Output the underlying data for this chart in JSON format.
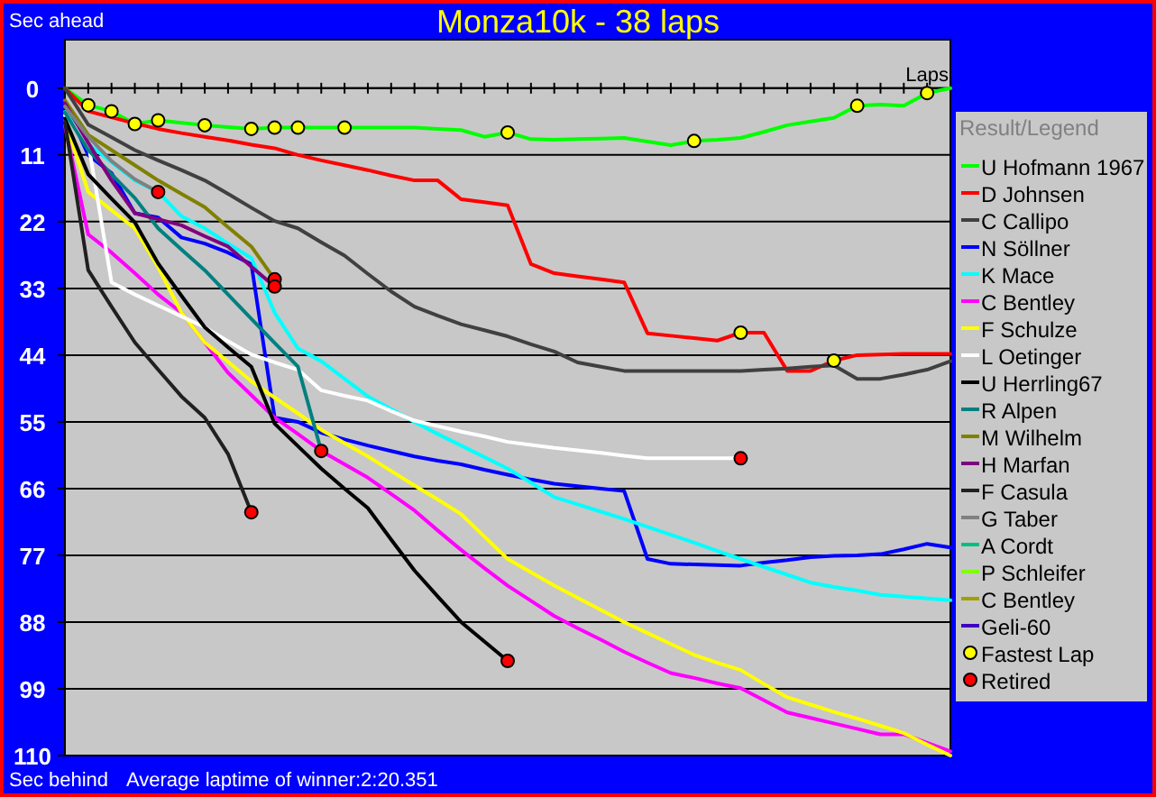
{
  "chart_data": {
    "type": "line",
    "title": "Monza10k - 38 laps",
    "ylabel": "Sec ahead",
    "xlabel": "Laps",
    "legend_title": "Result/Legend",
    "legend": "right",
    "grid": "y",
    "tick_labels": "y",
    "annotations": [
      "Sec behind",
      "Average laptime of winner:2:20.351"
    ],
    "categories": [
      null,
      null,
      null,
      null,
      null,
      null,
      null,
      null,
      null,
      null,
      null,
      null,
      null,
      null,
      null,
      null,
      null,
      null,
      null,
      null,
      null,
      null,
      null,
      null,
      null,
      null,
      null,
      null,
      null,
      null,
      null,
      null,
      null,
      null,
      null,
      null,
      null,
      null,
      null
    ],
    "ylim": [
      110,
      -8
    ],
    "yticks": [
      0,
      11,
      22,
      33,
      44,
      55,
      66,
      77,
      88,
      99,
      110
    ],
    "series": [
      {
        "name": "U Hofmann 1967",
        "color": "#00ff00",
        "values": [
          0,
          2.8,
          3.8,
          5.9,
          5.3,
          5.7,
          6.1,
          6.4,
          6.7,
          6.5,
          6.5,
          6.5,
          6.5,
          6.5,
          6.5,
          6.5,
          6.7,
          6.9,
          8.0,
          7.3,
          8.4,
          8.5,
          8.4,
          8.3,
          8.2,
          8.8,
          9.4,
          8.7,
          8.5,
          8.2,
          7.2,
          6.1,
          5.5,
          4.9,
          2.9,
          2.7,
          2.9,
          0.8,
          0
        ]
      },
      {
        "name": "D Johnsen",
        "color": "#ff0000",
        "values": [
          0,
          3.8,
          4.8,
          5.8,
          6.7,
          7.4,
          8.0,
          8.6,
          9.3,
          9.9,
          11.0,
          11.9,
          12.7,
          13.5,
          14.4,
          15.2,
          15.2,
          18.3,
          18.8,
          19.3,
          29.0,
          30.5,
          31.0,
          31.5,
          32.0,
          40.4,
          40.8,
          41.2,
          41.6,
          40.3,
          40.3,
          46.6,
          46.6,
          44.9,
          44.0,
          43.9,
          43.8,
          43.8,
          43.8
        ]
      },
      {
        "name": "C Callipo",
        "color": "#404040",
        "values": [
          0,
          6.0,
          8.1,
          10.2,
          11.9,
          13.5,
          15.2,
          17.4,
          19.7,
          21.9,
          23.1,
          25.4,
          27.6,
          30.6,
          33.5,
          36.0,
          37.5,
          38.9,
          39.9,
          40.9,
          42.2,
          43.4,
          45.2,
          45.9,
          46.6,
          46.6,
          46.6,
          46.6,
          46.6,
          46.6,
          46.4,
          46.2,
          45.9,
          45.7,
          47.9,
          47.9,
          47.2,
          46.4,
          45.0
        ]
      },
      {
        "name": "N Söllner",
        "color": "#0000ff",
        "values": [
          2.5,
          11,
          14,
          20.6,
          21.3,
          24.6,
          25.6,
          27.1,
          29.0,
          54.3,
          55.0,
          56.8,
          57.9,
          58.9,
          59.8,
          60.7,
          61.4,
          62.0,
          62.9,
          63.7,
          64.5,
          65.2,
          65.6,
          66.0,
          66.4,
          77.6,
          78.4,
          78.5,
          78.6,
          78.7,
          78.2,
          77.8,
          77.3,
          77.1,
          77.0,
          76.8,
          76.0,
          75.1,
          75.7
        ]
      },
      {
        "name": "K Mace",
        "color": "#00ffff",
        "values": [
          3.9,
          9.2,
          12.2,
          15.2,
          17.1,
          21.1,
          23.1,
          25.6,
          28.0,
          37.0,
          42.9,
          45.0,
          47.9,
          50.8,
          52.9,
          55.0,
          57.0,
          58.9,
          60.8,
          62.7,
          65.0,
          67.4,
          68.6,
          69.8,
          71.0,
          72.3,
          73.6,
          74.9,
          76.3,
          77.6,
          78.9,
          80.2,
          81.5,
          82.2,
          82.8,
          83.5,
          83.8,
          84.1,
          84.4
        ]
      },
      {
        "name": "C Bentley",
        "color": "#ff00ff",
        "values": [
          6.2,
          24.1,
          27.1,
          30.5,
          34.0,
          37.0,
          41.9,
          46.9,
          50.6,
          54.3,
          57.0,
          59.8,
          62.0,
          64.2,
          66.9,
          69.6,
          72.9,
          76.1,
          79.1,
          82.0,
          84.5,
          87.0,
          89.0,
          90.9,
          92.9,
          94.7,
          96.4,
          97.2,
          98.1,
          98.9,
          100.9,
          102.9,
          103.8,
          104.7,
          105.6,
          106.5,
          106.5,
          107.9,
          109.3
        ]
      },
      {
        "name": "F Schulze",
        "color": "#ffff00",
        "values": [
          5.3,
          17.1,
          20.1,
          23.1,
          29.5,
          37.0,
          41.9,
          45.1,
          48.3,
          51.0,
          53.6,
          56.3,
          58.5,
          60.7,
          63.1,
          65.5,
          67.8,
          70.2,
          73.9,
          77.6,
          79.8,
          82.0,
          84.0,
          86.0,
          88.0,
          89.8,
          91.6,
          93.4,
          94.7,
          95.9,
          98.2,
          100.4,
          101.6,
          102.8,
          103.9,
          105.1,
          106.3,
          108.2,
          110
        ]
      },
      {
        "name": "L Oetinger",
        "color": "#ffffff",
        "values": [
          4.5,
          9,
          32.0,
          34.0,
          35.8,
          37.6,
          39.4,
          41.7,
          43.9,
          45.2,
          46.4,
          49.8,
          50.7,
          51.5,
          53.2,
          54.8,
          55.7,
          56.6,
          57.4,
          58.3,
          58.8,
          59.3,
          59.7,
          60.1,
          60.6,
          61.0,
          61.0,
          61.0,
          61.0,
          61.0,
          null,
          null,
          null,
          null,
          null,
          null,
          null,
          null,
          null
        ]
      },
      {
        "name": "U Herrling67",
        "color": "#000000",
        "values": [
          5,
          14.2,
          18.2,
          22.1,
          28.9,
          34.2,
          39.4,
          42.7,
          45.9,
          55.3,
          59.0,
          62.7,
          66.0,
          69.2,
          74.4,
          79.5,
          83.8,
          88.0,
          91.2,
          94.4,
          null,
          null,
          null,
          null,
          null,
          null,
          null,
          null,
          null,
          null,
          null,
          null,
          null,
          null,
          null,
          null,
          null,
          null,
          null
        ]
      },
      {
        "name": "R Alpen",
        "color": "#008080",
        "values": [
          4.0,
          10.2,
          14.2,
          18.1,
          23.1,
          26.6,
          30.0,
          34.0,
          38.0,
          42.0,
          45.9,
          59.8,
          null,
          null,
          null,
          null,
          null,
          null,
          null,
          null,
          null,
          null,
          null,
          null,
          null,
          null,
          null,
          null,
          null,
          null,
          null,
          null,
          null,
          null,
          null,
          null,
          null,
          null,
          null
        ]
      },
      {
        "name": "M Wilhelm",
        "color": "#808000",
        "values": [
          2,
          7.7,
          10.2,
          12.7,
          15.2,
          17.4,
          19.6,
          22.9,
          26.1,
          31.5,
          null,
          null,
          null,
          null,
          null,
          null,
          null,
          null,
          null,
          null,
          null,
          null,
          null,
          null,
          null,
          null,
          null,
          null,
          null,
          null,
          null,
          null,
          null,
          null,
          null,
          null,
          null,
          null,
          null
        ]
      },
      {
        "name": "H Marfan",
        "color": "#800080",
        "values": [
          2.5,
          9,
          15.2,
          20.6,
          21.6,
          22.6,
          24.4,
          26.1,
          29.4,
          32.7,
          null,
          null,
          null,
          null,
          null,
          null,
          null,
          null,
          null,
          null,
          null,
          null,
          null,
          null,
          null,
          null,
          null,
          null,
          null,
          null,
          null,
          null,
          null,
          null,
          null,
          null,
          null,
          null,
          null
        ]
      },
      {
        "name": "F Casula",
        "color": "#202020",
        "values": [
          5.5,
          30.0,
          36.0,
          41.9,
          46.4,
          50.8,
          54.3,
          60.3,
          69.9,
          null,
          null,
          null,
          null,
          null,
          null,
          null,
          null,
          null,
          null,
          null,
          null,
          null,
          null,
          null,
          null,
          null,
          null,
          null,
          null,
          null,
          null,
          null,
          null,
          null,
          null,
          null,
          null,
          null,
          null
        ]
      },
      {
        "name": "G Taber",
        "color": "#808080",
        "values": [
          3,
          8,
          12,
          15,
          17.1,
          null,
          null,
          null,
          null,
          null,
          null,
          null,
          null,
          null,
          null,
          null,
          null,
          null,
          null,
          null,
          null,
          null,
          null,
          null,
          null,
          null,
          null,
          null,
          null,
          null,
          null,
          null,
          null,
          null,
          null,
          null,
          null,
          null,
          null
        ]
      },
      {
        "name": "A Cordt",
        "color": "#00c080",
        "values": [
          null,
          null,
          null,
          null,
          null,
          null,
          null,
          null,
          null,
          null,
          null,
          null,
          null,
          null,
          null,
          null,
          null,
          null,
          null,
          null,
          null,
          null,
          null,
          null,
          null,
          null,
          null,
          null,
          null,
          null,
          null,
          null,
          null,
          null,
          null,
          null,
          null,
          null,
          null
        ]
      },
      {
        "name": "P Schleifer",
        "color": "#80ff00",
        "values": [
          null,
          null,
          null,
          null,
          null,
          null,
          null,
          null,
          null,
          null,
          null,
          null,
          null,
          null,
          null,
          null,
          null,
          null,
          null,
          null,
          null,
          null,
          null,
          null,
          null,
          null,
          null,
          null,
          null,
          null,
          null,
          null,
          null,
          null,
          null,
          null,
          null,
          null,
          null
        ]
      },
      {
        "name": "C Bentley",
        "color": "#a0a000",
        "values": [
          null,
          null,
          null,
          null,
          null,
          null,
          null,
          null,
          null,
          null,
          null,
          null,
          null,
          null,
          null,
          null,
          null,
          null,
          null,
          null,
          null,
          null,
          null,
          null,
          null,
          null,
          null,
          null,
          null,
          null,
          null,
          null,
          null,
          null,
          null,
          null,
          null,
          null,
          null
        ]
      },
      {
        "name": "Geli-60",
        "color": "#4000c0",
        "values": [
          null,
          null,
          null,
          null,
          null,
          null,
          null,
          null,
          null,
          null,
          null,
          null,
          null,
          null,
          null,
          null,
          null,
          null,
          null,
          null,
          null,
          null,
          null,
          null,
          null,
          null,
          null,
          null,
          null,
          null,
          null,
          null,
          null,
          null,
          null,
          null,
          null,
          null,
          null
        ]
      },
      {
        "name": "Fastest Lap",
        "type": "scatter",
        "marker": "circle",
        "color": "#ffff00",
        "values": [
          null,
          2.8,
          3.8,
          5.9,
          5.3,
          null,
          6.1,
          null,
          6.7,
          6.5,
          6.5,
          null,
          6.5,
          null,
          null,
          null,
          null,
          null,
          null,
          7.3,
          null,
          null,
          null,
          null,
          null,
          null,
          null,
          8.7,
          null,
          40.3,
          null,
          null,
          null,
          44.9,
          2.9,
          null,
          null,
          0.8,
          null
        ]
      },
      {
        "name": "Retired",
        "type": "scatter",
        "marker": "circle",
        "color": "#ff0000",
        "values": [
          null,
          null,
          null,
          null,
          17.1,
          null,
          null,
          null,
          69.9,
          31.5,
          null,
          59.8,
          null,
          null,
          null,
          null,
          null,
          null,
          null,
          94.4,
          null,
          null,
          null,
          null,
          null,
          null,
          null,
          null,
          null,
          61.0,
          null,
          null,
          null,
          null,
          null,
          null,
          null,
          null,
          null
        ]
      },
      {
        "type": "scatter",
        "marker": "circle",
        "color": "#ff0000",
        "values": [
          null,
          null,
          null,
          null,
          null,
          null,
          null,
          null,
          null,
          32.7,
          null,
          null,
          null,
          null,
          null,
          null,
          null,
          null,
          null,
          null,
          null,
          null,
          null,
          null,
          null,
          null,
          null,
          null,
          null,
          null,
          null,
          null,
          null,
          null,
          null,
          null,
          null,
          null,
          null
        ]
      }
    ]
  }
}
